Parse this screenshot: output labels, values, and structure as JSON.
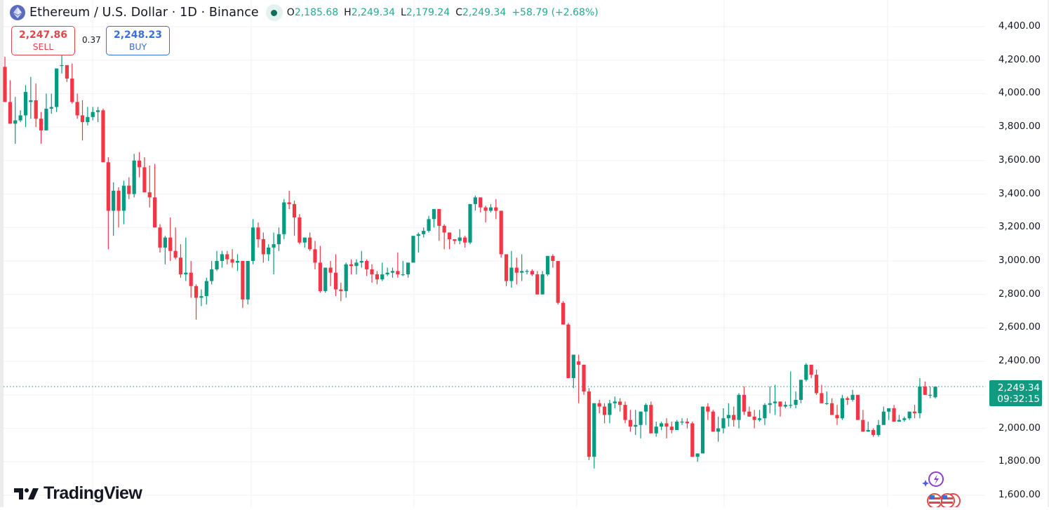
{
  "header": {
    "symbol_title": "Ethereum / U.S. Dollar · 1D · Binance",
    "ohlc": {
      "open_label": "O",
      "open": "2,185.68",
      "high_label": "H",
      "high": "2,249.34",
      "low_label": "L",
      "low": "2,179.24",
      "close_label": "C",
      "close": "2,249.34",
      "change": "+58.79 (+2.68%)"
    },
    "market_status": "open"
  },
  "trade": {
    "sell_price": "2,247.86",
    "sell_label": "SELL",
    "spread": "0.37",
    "buy_price": "2,248.23",
    "buy_label": "BUY"
  },
  "price_axis": {
    "labels": [
      "4,400.00",
      "4,200.00",
      "4,000.00",
      "3,800.00",
      "3,600.00",
      "3,400.00",
      "3,200.00",
      "3,000.00",
      "2,800.00",
      "2,600.00",
      "2,400.00",
      "2,000.00",
      "1,800.00",
      "1,600.00"
    ],
    "last_price": "2,249.34",
    "countdown": "09:32:15"
  },
  "brand": {
    "name": "TradingView"
  },
  "colors": {
    "up": "#089981",
    "down": "#f23645",
    "last_price_bg": "#129a80",
    "sell": "#e0474c",
    "buy": "#3b6fd8"
  },
  "chart_data": {
    "type": "candlestick",
    "title": "Ethereum / U.S. Dollar · 1D · Binance",
    "xlabel": "",
    "ylabel": "USD",
    "ylim": [
      1600,
      4400
    ],
    "yticks": [
      1600,
      1800,
      2000,
      2200,
      2400,
      2600,
      2800,
      3000,
      3200,
      3400,
      3600,
      3800,
      4000,
      4200,
      4400
    ],
    "grid": true,
    "last_value": 2249.34,
    "candles": [
      [
        4160,
        4220,
        3950,
        3950
      ],
      [
        3950,
        4080,
        3830,
        3820
      ],
      [
        3820,
        3980,
        3700,
        3840
      ],
      [
        3840,
        3900,
        3830,
        3870
      ],
      [
        3870,
        4050,
        3800,
        4010
      ],
      [
        3950,
        4100,
        3850,
        3960
      ],
      [
        3960,
        4060,
        3800,
        3850
      ],
      [
        3850,
        3890,
        3700,
        3780
      ],
      [
        3780,
        4000,
        3780,
        3910
      ],
      [
        3910,
        4000,
        3880,
        3920
      ],
      [
        3920,
        4090,
        3890,
        4150
      ],
      [
        4170,
        4250,
        4120,
        4170
      ],
      [
        4170,
        4160,
        4070,
        4090
      ],
      [
        4090,
        4180,
        3940,
        3950
      ],
      [
        3950,
        4000,
        3850,
        3870
      ],
      [
        3870,
        3960,
        3720,
        3830
      ],
      [
        3830,
        3920,
        3810,
        3860
      ],
      [
        3860,
        3920,
        3840,
        3890
      ],
      [
        3890,
        3920,
        3830,
        3900
      ],
      [
        3900,
        3910,
        3600,
        3590
      ],
      [
        3590,
        3620,
        3070,
        3300
      ],
      [
        3300,
        3470,
        3150,
        3420
      ],
      [
        3420,
        3440,
        3200,
        3300
      ],
      [
        3300,
        3480,
        3220,
        3450
      ],
      [
        3450,
        3500,
        3370,
        3400
      ],
      [
        3400,
        3640,
        3380,
        3600
      ],
      [
        3600,
        3650,
        3500,
        3560
      ],
      [
        3560,
        3620,
        3420,
        3410
      ],
      [
        3410,
        3570,
        3320,
        3380
      ],
      [
        3380,
        3580,
        3350,
        3200
      ],
      [
        3200,
        3220,
        3050,
        3080
      ],
      [
        3080,
        3150,
        2980,
        3140
      ],
      [
        3140,
        3260,
        3000,
        3060
      ],
      [
        3060,
        3200,
        3010,
        3020
      ],
      [
        3020,
        3100,
        2900,
        2920
      ],
      [
        2920,
        3140,
        2880,
        2930
      ],
      [
        2930,
        3000,
        2780,
        2850
      ],
      [
        2850,
        2860,
        2650,
        2780
      ],
      [
        2780,
        2830,
        2730,
        2790
      ],
      [
        2790,
        2900,
        2740,
        2880
      ],
      [
        2880,
        3000,
        2860,
        2950
      ],
      [
        2950,
        3060,
        2940,
        3000
      ],
      [
        3000,
        3060,
        2960,
        3040
      ],
      [
        3040,
        3060,
        2980,
        3010
      ],
      [
        3010,
        3070,
        2960,
        2990
      ],
      [
        2990,
        3040,
        2940,
        3000
      ],
      [
        3000,
        3000,
        2720,
        2770
      ],
      [
        2770,
        3000,
        2740,
        3000
      ],
      [
        3000,
        3250,
        2980,
        3200
      ],
      [
        3200,
        3230,
        3080,
        3130
      ],
      [
        3130,
        3170,
        2990,
        3040
      ],
      [
        3040,
        3100,
        3000,
        3080
      ],
      [
        3080,
        3170,
        2920,
        3100
      ],
      [
        3100,
        3200,
        3060,
        3160
      ],
      [
        3160,
        3370,
        3130,
        3350
      ],
      [
        3350,
        3420,
        3310,
        3340
      ],
      [
        3340,
        3360,
        3150,
        3260
      ],
      [
        3260,
        3280,
        3100,
        3110
      ],
      [
        3110,
        3140,
        3080,
        3140
      ],
      [
        3140,
        3170,
        3060,
        3070
      ],
      [
        3070,
        3120,
        2950,
        2990
      ],
      [
        2990,
        3090,
        2810,
        2820
      ],
      [
        2820,
        2960,
        2810,
        2960
      ],
      [
        2960,
        3000,
        2850,
        2930
      ],
      [
        2930,
        3040,
        2790,
        2830
      ],
      [
        2830,
        2870,
        2760,
        2820
      ],
      [
        2820,
        2990,
        2780,
        2980
      ],
      [
        2980,
        3010,
        2920,
        2970
      ],
      [
        2970,
        3010,
        2920,
        2990
      ],
      [
        2990,
        3060,
        2960,
        3000
      ],
      [
        3000,
        3010,
        2910,
        2950
      ],
      [
        2950,
        2980,
        2870,
        2920
      ],
      [
        2920,
        2940,
        2860,
        2890
      ],
      [
        2890,
        2990,
        2880,
        2920
      ],
      [
        2920,
        2960,
        2910,
        2930
      ],
      [
        2930,
        2960,
        2900,
        2940
      ],
      [
        2940,
        3050,
        2900,
        2920
      ],
      [
        2920,
        3000,
        2910,
        2920
      ],
      [
        2920,
        2990,
        2900,
        2990
      ],
      [
        2990,
        3150,
        2990,
        3150
      ],
      [
        3150,
        3170,
        3050,
        3160
      ],
      [
        3160,
        3200,
        3140,
        3180
      ],
      [
        3180,
        3270,
        3170,
        3250
      ],
      [
        3250,
        3310,
        3200,
        3310
      ],
      [
        3310,
        3300,
        3120,
        3210
      ],
      [
        3210,
        3220,
        3070,
        3170
      ],
      [
        3170,
        3160,
        3070,
        3130
      ],
      [
        3130,
        3110,
        3100,
        3120
      ],
      [
        3120,
        3190,
        3100,
        3140
      ],
      [
        3140,
        3150,
        3080,
        3110
      ],
      [
        3110,
        3340,
        3100,
        3340
      ],
      [
        3340,
        3390,
        3300,
        3380
      ],
      [
        3380,
        3360,
        3290,
        3320
      ],
      [
        3320,
        3330,
        3230,
        3300
      ],
      [
        3300,
        3340,
        3290,
        3320
      ],
      [
        3320,
        3370,
        3250,
        3300
      ],
      [
        3300,
        3260,
        3020,
        3040
      ],
      [
        3040,
        2990,
        2850,
        2880
      ],
      [
        2880,
        3060,
        2840,
        2960
      ],
      [
        2960,
        3020,
        2860,
        2930
      ],
      [
        2930,
        3040,
        2880,
        2940
      ],
      [
        2940,
        2950,
        2920,
        2940
      ],
      [
        2940,
        2950,
        2910,
        2920
      ],
      [
        2920,
        2940,
        2810,
        2800
      ],
      [
        2800,
        2940,
        2800,
        2920
      ],
      [
        2920,
        3020,
        2910,
        3030
      ],
      [
        3030,
        3040,
        2960,
        3000
      ],
      [
        3000,
        3000,
        2740,
        2750
      ],
      [
        2750,
        2760,
        2620,
        2620
      ],
      [
        2620,
        2630,
        2380,
        2300
      ],
      [
        2300,
        2440,
        2240,
        2440
      ],
      [
        2400,
        2440,
        2150,
        2380
      ],
      [
        2380,
        2350,
        2200,
        2220
      ],
      [
        2220,
        2240,
        1810,
        1830
      ],
      [
        1830,
        2150,
        1760,
        2150
      ],
      [
        2150,
        2170,
        2090,
        2130
      ],
      [
        2130,
        2150,
        2030,
        2080
      ],
      [
        2080,
        2170,
        2030,
        2150
      ],
      [
        2150,
        2190,
        2120,
        2160
      ],
      [
        2160,
        2180,
        2100,
        2140
      ],
      [
        2140,
        2160,
        2030,
        2050
      ],
      [
        2050,
        2110,
        1980,
        2010
      ],
      [
        2010,
        2110,
        1960,
        2020
      ],
      [
        2020,
        2090,
        1940,
        2100
      ],
      [
        2100,
        2150,
        2020,
        2140
      ],
      [
        2140,
        2160,
        1980,
        1970
      ],
      [
        1970,
        2040,
        1950,
        2010
      ],
      [
        2010,
        2040,
        1990,
        2030
      ],
      [
        2030,
        2060,
        1940,
        2010
      ],
      [
        2010,
        2040,
        1970,
        1990
      ],
      [
        1990,
        2050,
        1990,
        2040
      ],
      [
        2040,
        2060,
        2020,
        2040
      ],
      [
        2040,
        2060,
        2000,
        2030
      ],
      [
        2030,
        2040,
        1830,
        1830
      ],
      [
        1830,
        1850,
        1800,
        1850
      ],
      [
        1850,
        2130,
        1850,
        2130
      ],
      [
        2130,
        2150,
        2050,
        2100
      ],
      [
        2100,
        2110,
        1980,
        1980
      ],
      [
        1980,
        2070,
        1920,
        2000
      ],
      [
        2000,
        2120,
        1970,
        2060
      ],
      [
        2060,
        2150,
        2010,
        2080
      ],
      [
        2080,
        2130,
        2010,
        2050
      ],
      [
        2050,
        2210,
        2000,
        2200
      ],
      [
        2200,
        2250,
        2080,
        2100
      ],
      [
        2100,
        2130,
        2080,
        2070
      ],
      [
        2070,
        2110,
        2000,
        2050
      ],
      [
        2050,
        2110,
        2040,
        2060
      ],
      [
        2060,
        2150,
        2020,
        2140
      ],
      [
        2140,
        2250,
        2090,
        2150
      ],
      [
        2150,
        2260,
        2080,
        2160
      ],
      [
        2160,
        2160,
        2070,
        2130
      ],
      [
        2130,
        2160,
        2120,
        2140
      ],
      [
        2140,
        2340,
        2120,
        2140
      ],
      [
        2140,
        2220,
        2120,
        2170
      ],
      [
        2170,
        2270,
        2150,
        2290
      ],
      [
        2290,
        2390,
        2280,
        2380
      ],
      [
        2380,
        2370,
        2300,
        2320
      ],
      [
        2320,
        2350,
        2200,
        2210
      ],
      [
        2210,
        2260,
        2150,
        2150
      ],
      [
        2150,
        2220,
        2140,
        2150
      ],
      [
        2150,
        2180,
        2080,
        2080
      ],
      [
        2080,
        2140,
        2020,
        2060
      ],
      [
        2060,
        2200,
        2050,
        2180
      ],
      [
        2180,
        2190,
        2140,
        2170
      ],
      [
        2170,
        2230,
        2160,
        2200
      ],
      [
        2200,
        2190,
        2060,
        2050
      ],
      [
        2050,
        2110,
        1980,
        1980
      ],
      [
        1980,
        2040,
        1980,
        1990
      ],
      [
        1990,
        2000,
        1950,
        1960
      ],
      [
        1960,
        2050,
        1950,
        2020
      ],
      [
        2020,
        2130,
        2020,
        2100
      ],
      [
        2100,
        2120,
        2050,
        2120
      ],
      [
        2120,
        2140,
        2060,
        2040
      ],
      [
        2040,
        2080,
        2050,
        2050
      ],
      [
        2050,
        2070,
        2040,
        2060
      ],
      [
        2060,
        2100,
        2050,
        2100
      ],
      [
        2100,
        2140,
        2060,
        2090
      ],
      [
        2090,
        2300,
        2060,
        2250
      ],
      [
        2250,
        2280,
        2200,
        2200
      ],
      [
        2200,
        2250,
        2180,
        2200
      ],
      [
        2186,
        2249,
        2179,
        2249
      ]
    ]
  }
}
